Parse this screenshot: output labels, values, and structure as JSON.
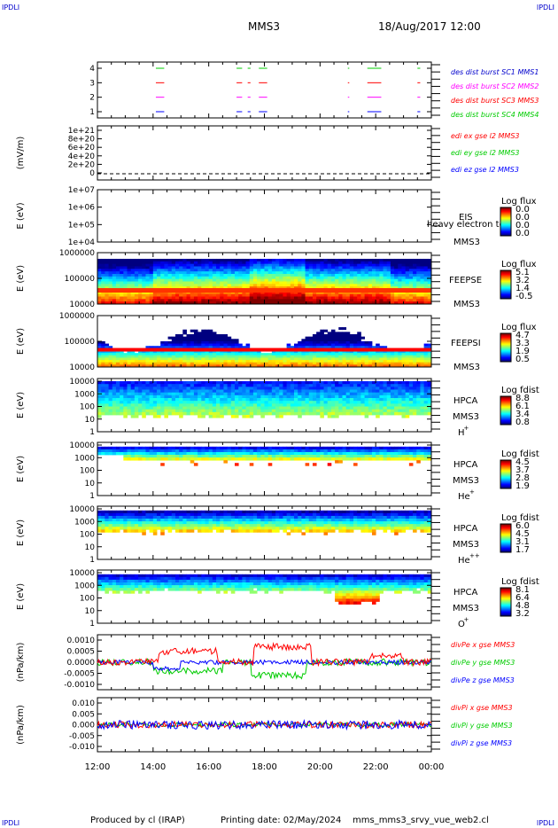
{
  "corner_label": "IPDLI",
  "header": {
    "spacecraft": "MMS3",
    "datetime": "18/Aug/2017 12:00"
  },
  "footer": {
    "produced_by": "Produced by  cl (IRAP)",
    "printing_date": "Printing date: 02/May/2024",
    "product": "mms_mms3_srvy_vue_web2.cl"
  },
  "colors": {
    "red": "#ff0000",
    "green": "#00cc00",
    "blue": "#0000ff",
    "magenta": "#ff00ff",
    "frame": "#000000"
  },
  "chart_data": [
    {
      "id": "burst",
      "type": "line",
      "ylabel": "",
      "yticks": [
        "1",
        "2",
        "3",
        "4"
      ],
      "legend": [
        {
          "label": "des dist burst SC1 MMS1",
          "color": "#0000cc"
        },
        {
          "label": "des dist burst SC2 MMS2",
          "color": "#ff00ff"
        },
        {
          "label": "des dist burst SC3 MMS3",
          "color": "#ff0000"
        },
        {
          "label": "des dist burst SC4 MMS4",
          "color": "#00cc00"
        }
      ],
      "segments": [
        [
          14.1,
          14.4
        ],
        [
          17.0,
          17.2
        ],
        [
          17.4,
          17.5
        ],
        [
          17.8,
          18.1
        ],
        [
          21.0,
          21.05
        ],
        [
          21.7,
          22.2
        ],
        [
          23.5,
          23.6
        ]
      ]
    },
    {
      "id": "edi",
      "type": "line",
      "ylabel": "(mV/m)",
      "yticks": [
        "0",
        "2e+20",
        "4e+20",
        "6e+20",
        "8e+20",
        "1e+21"
      ],
      "legend": [
        {
          "label": "edi ex gse l2 MMS3",
          "color": "#ff0000"
        },
        {
          "label": "edi ey gse l2 MMS3",
          "color": "#00cc00"
        },
        {
          "label": "edi ez gse l2 MMS3",
          "color": "#0000ff"
        }
      ]
    },
    {
      "id": "eis",
      "type": "heatmap",
      "ylabel": "E (eV)",
      "yticks": [
        "1e+04",
        "1e+05",
        "1e+06",
        "1e+07"
      ],
      "instrument": "EIS",
      "spacecraft": "MMS3",
      "overlay": "heavy electron to",
      "cbar_title": "Log flux",
      "cbar_ticks": [
        "0.0",
        "0.0",
        "0.0",
        "0.0"
      ]
    },
    {
      "id": "feepse",
      "type": "heatmap",
      "ylabel": "E (eV)",
      "yticks": [
        "10000",
        "100000",
        "1000000"
      ],
      "instrument": "FEEPSE",
      "spacecraft": "MMS3",
      "cbar_title": "Log flux",
      "cbar_ticks": [
        "5.1",
        "3.2",
        "1.4",
        "-0.5"
      ]
    },
    {
      "id": "feepsi",
      "type": "heatmap",
      "ylabel": "E (eV)",
      "yticks": [
        "10000",
        "100000",
        "1000000"
      ],
      "instrument": "FEEPSI",
      "spacecraft": "MMS3",
      "cbar_title": "Log flux",
      "cbar_ticks": [
        "4.7",
        "3.3",
        "1.9",
        "0.5"
      ]
    },
    {
      "id": "hpca_h",
      "type": "heatmap",
      "ylabel": "E (eV)",
      "yticks": [
        "1",
        "10",
        "100",
        "1000",
        "10000"
      ],
      "instrument": "HPCA",
      "spacecraft": "MMS3",
      "ion": "H",
      "charge": "+",
      "cbar_title": "Log fdist",
      "cbar_ticks": [
        "8.8",
        "6.1",
        "3.4",
        "0.8"
      ]
    },
    {
      "id": "hpca_he",
      "type": "heatmap",
      "ylabel": "E (eV)",
      "yticks": [
        "1",
        "10",
        "100",
        "1000",
        "10000"
      ],
      "instrument": "HPCA",
      "spacecraft": "MMS3",
      "ion": "He",
      "charge": "+",
      "cbar_title": "Log fdist",
      "cbar_ticks": [
        "4.5",
        "3.7",
        "2.8",
        "1.9"
      ]
    },
    {
      "id": "hpca_hepp",
      "type": "heatmap",
      "ylabel": "E (eV)",
      "yticks": [
        "1",
        "10",
        "100",
        "1000",
        "10000"
      ],
      "instrument": "HPCA",
      "spacecraft": "MMS3",
      "ion": "He",
      "charge": "++",
      "cbar_title": "Log fdist",
      "cbar_ticks": [
        "6.0",
        "4.5",
        "3.1",
        "1.7"
      ]
    },
    {
      "id": "hpca_o",
      "type": "heatmap",
      "ylabel": "E (eV)",
      "yticks": [
        "1",
        "10",
        "100",
        "1000",
        "10000"
      ],
      "instrument": "HPCA",
      "spacecraft": "MMS3",
      "ion": "O",
      "charge": "+",
      "cbar_title": "Log fdist",
      "cbar_ticks": [
        "8.1",
        "6.4",
        "4.8",
        "3.2"
      ]
    },
    {
      "id": "divpe",
      "type": "line",
      "ylabel": "(nPa/km)",
      "yticks": [
        "-0.0010",
        "-0.0005",
        "0.0000",
        "0.0005",
        "0.0010"
      ],
      "ylim": [
        -0.00125,
        0.00125
      ],
      "legend": [
        {
          "label": "divPe x gse MMS3",
          "color": "#ff0000"
        },
        {
          "label": "divPe y gse MMS3",
          "color": "#00cc00"
        },
        {
          "label": "divPe z gse MMS3",
          "color": "#0000ff"
        }
      ]
    },
    {
      "id": "divpi",
      "type": "line",
      "ylabel": "(nPa/km)",
      "yticks": [
        "-0.010",
        "-0.005",
        "0.000",
        "0.005",
        "0.010"
      ],
      "ylim": [
        -0.0125,
        0.0125
      ],
      "legend": [
        {
          "label": "divPi x gse MMS3",
          "color": "#ff0000"
        },
        {
          "label": "divPi y gse MMS3",
          "color": "#00cc00"
        },
        {
          "label": "divPi z gse MMS3",
          "color": "#0000ff"
        }
      ]
    }
  ],
  "time_axis": {
    "start_hour": 12,
    "end_hour": 24,
    "ticks": [
      "12:00",
      "14:00",
      "16:00",
      "18:00",
      "20:00",
      "22:00",
      "00:00"
    ]
  }
}
